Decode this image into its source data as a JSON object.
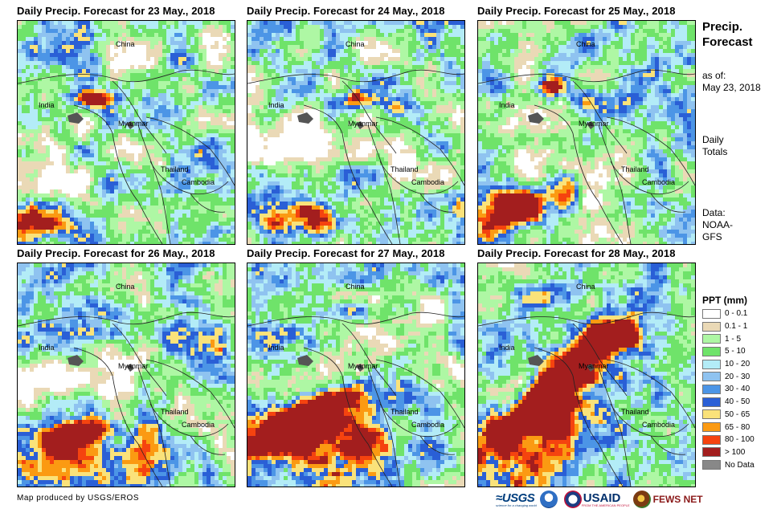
{
  "panels": [
    {
      "title": "Daily Precip. Forecast for 23 May., 2018",
      "day": 0
    },
    {
      "title": "Daily Precip. Forecast for 24 May., 2018",
      "day": 1
    },
    {
      "title": "Daily Precip. Forecast for 25 May., 2018",
      "day": 2
    },
    {
      "title": "Daily Precip. Forecast for 26 May., 2018",
      "day": 3
    },
    {
      "title": "Daily Precip. Forecast for 27 May., 2018",
      "day": 4
    },
    {
      "title": "Daily Precip. Forecast for 28 May., 2018",
      "day": 5
    }
  ],
  "map_labels": {
    "china": "China",
    "india": "India",
    "myanmar": "Myanmar",
    "thailand": "Thailand",
    "cambodia": "Cambodia"
  },
  "side": {
    "title_line1": "Precip.",
    "title_line2": "Forecast",
    "asof_line1": "as of:",
    "asof_line2": "May 23, 2018",
    "totals_line1": "Daily",
    "totals_line2": "Totals",
    "data_line1": "Data:",
    "data_line2": "NOAA-",
    "data_line3": "GFS"
  },
  "legend": {
    "title": "PPT (mm)",
    "items": [
      {
        "label": "0 - 0.1",
        "color": "#ffffff"
      },
      {
        "label": "0.1 - 1",
        "color": "#ead9b6"
      },
      {
        "label": "1 - 5",
        "color": "#aef7a4"
      },
      {
        "label": "5 - 10",
        "color": "#6fe36a"
      },
      {
        "label": "10 - 20",
        "color": "#b3ecf7"
      },
      {
        "label": "20 - 30",
        "color": "#8fc3f0"
      },
      {
        "label": "30 - 40",
        "color": "#4c95e6"
      },
      {
        "label": "40 - 50",
        "color": "#2a5fd6"
      },
      {
        "label": "50 - 65",
        "color": "#fae27a"
      },
      {
        "label": "65 - 80",
        "color": "#fb9a12"
      },
      {
        "label": "80 - 100",
        "color": "#f5430f"
      },
      {
        "label": "> 100",
        "color": "#a31e1e"
      },
      {
        "label": "No Data",
        "color": "#888888"
      }
    ]
  },
  "credit": "Map produced by USGS/EROS",
  "logos": {
    "usgs": "≈USGS",
    "usgs_tag": "science for a changing world",
    "usaid": "USAID",
    "usaid_tag": "FROM THE AMERICAN PEOPLE",
    "fews": "FEWS NET"
  }
}
